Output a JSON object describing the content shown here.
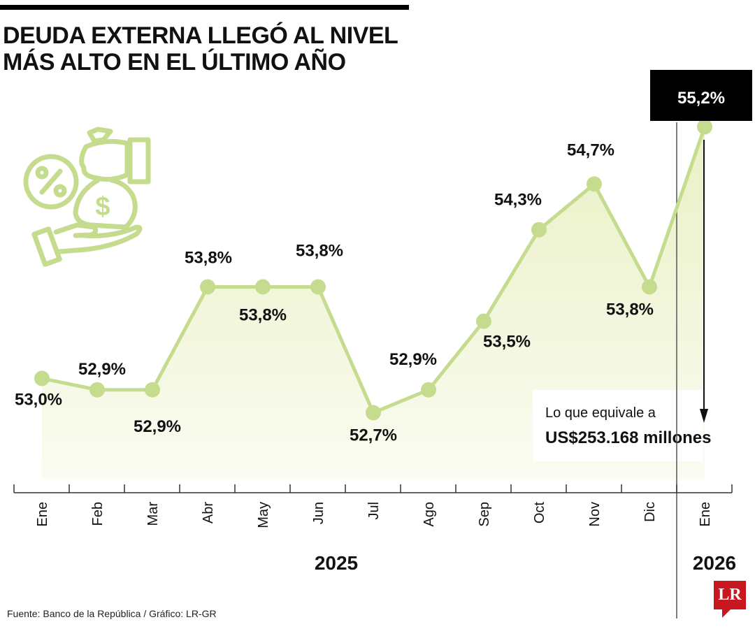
{
  "title_lines": [
    "DEUDA EXTERNA LLEGÓ AL NIVEL",
    "MÁS ALTO EN EL ÚLTIMO AÑO"
  ],
  "source": "Fuente: Banco de la República / Gráfico: LR-GR",
  "logo_text": "LR",
  "icon": "money-bag-hand-percent-icon",
  "colors": {
    "line": "#c5dc8e",
    "fill": "#f3f6dc",
    "highlight_box": "#000000",
    "logo": "#c8171e"
  },
  "chart_data": {
    "type": "area",
    "categories": [
      "Ene",
      "Feb",
      "Mar",
      "Abr",
      "May",
      "Jun",
      "Jul",
      "Ago",
      "Sep",
      "Oct",
      "Nov",
      "Dic",
      "Ene"
    ],
    "years": [
      {
        "label": "2025",
        "months": 12
      },
      {
        "label": "2026",
        "months": 1
      }
    ],
    "values": [
      53.0,
      52.9,
      52.9,
      53.8,
      53.8,
      53.8,
      52.7,
      52.9,
      53.5,
      54.3,
      54.7,
      53.8,
      55.2
    ],
    "data_labels": [
      "53,0%",
      "52,9%",
      "52,9%",
      "53,8%",
      "53,8%",
      "53,8%",
      "52,7%",
      "52,9%",
      "53,5%",
      "54,3%",
      "54,7%",
      "53,8%",
      "55,2%"
    ],
    "unit": "%",
    "highlight": {
      "label": "55,2%",
      "note_line1": "Lo que equivale a",
      "note_line2": "US$253.168 millones"
    },
    "grid": false
  }
}
